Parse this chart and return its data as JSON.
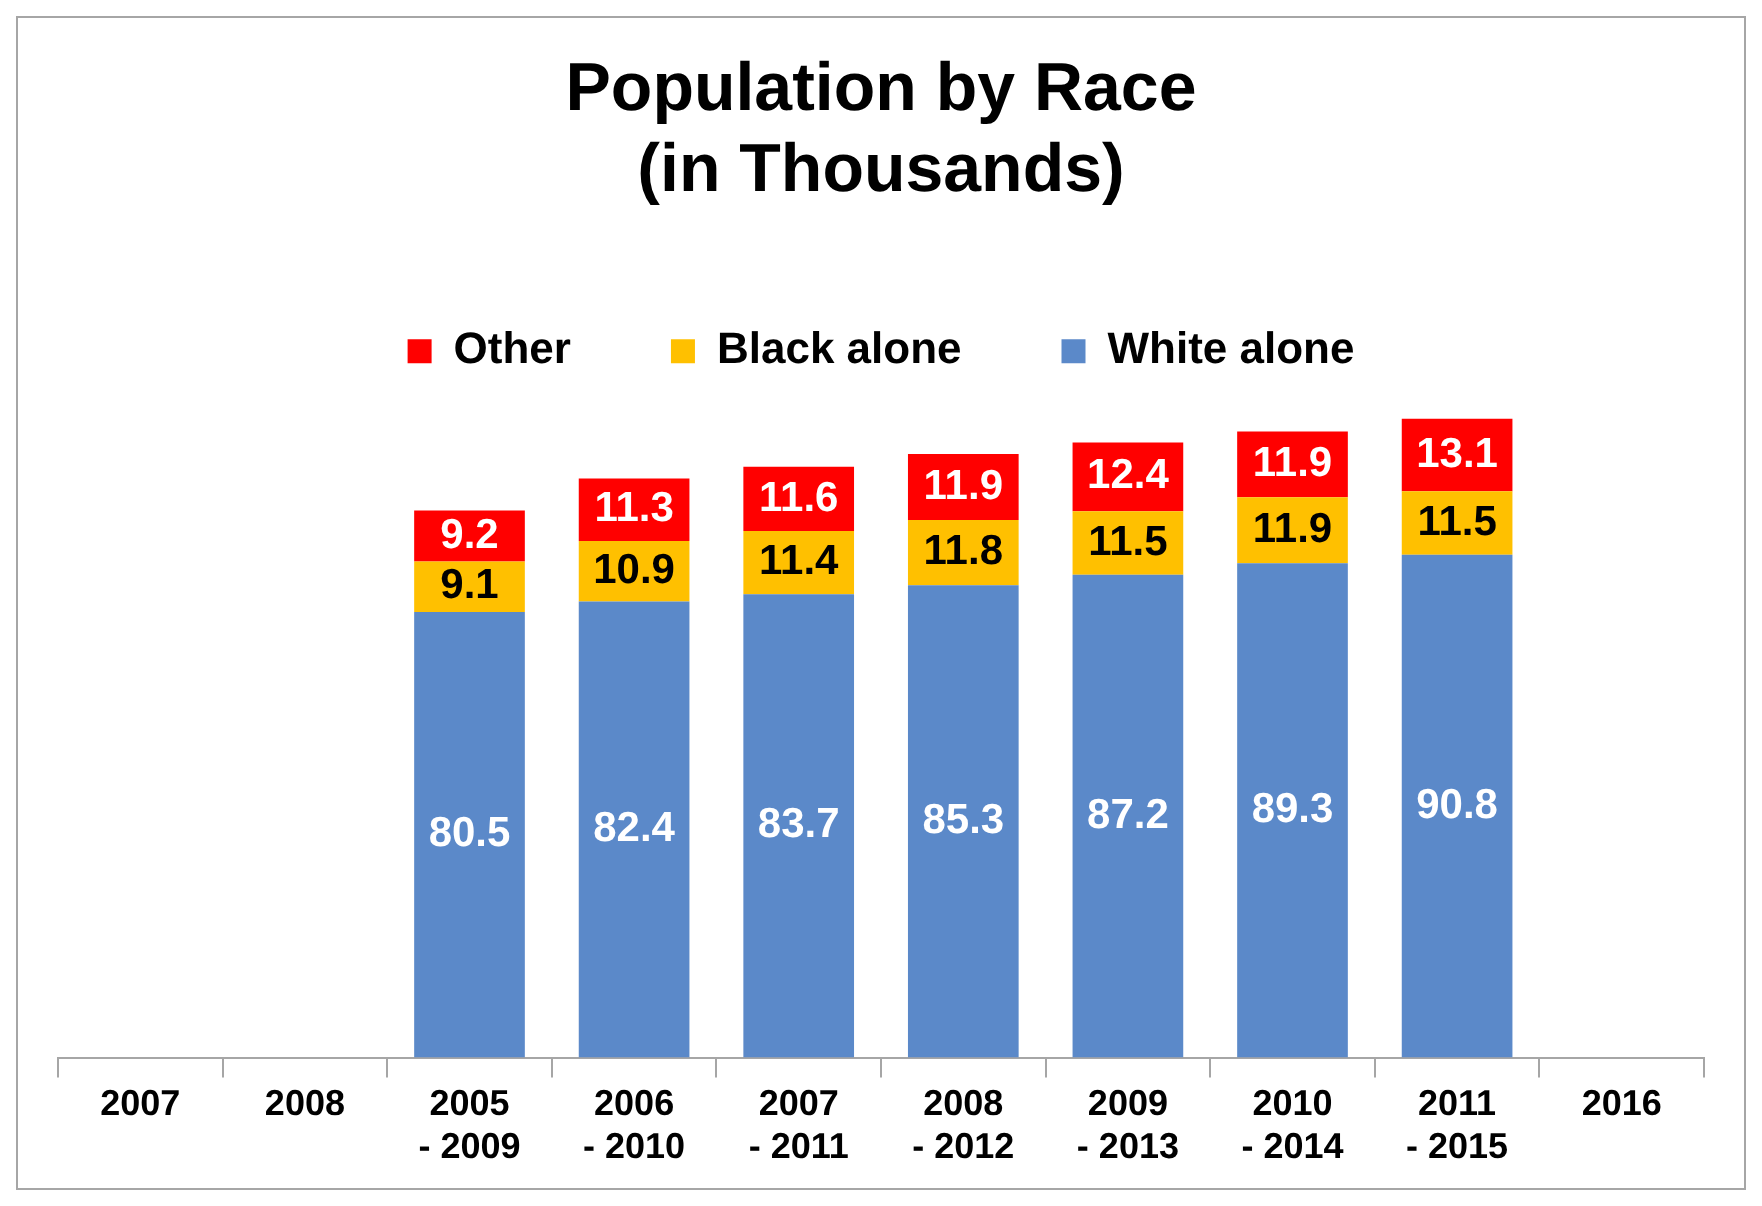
{
  "chart_data": {
    "type": "bar",
    "title": "Population by Race\n(in Thousands)",
    "categories": [
      "2007",
      "2008",
      "2005 - 2009",
      "2006 - 2010",
      "2007 - 2011",
      "2008 - 2012",
      "2009 - 2013",
      "2010 - 2014",
      "2011 - 2015",
      "2016"
    ],
    "stacked": true,
    "data_labels": true,
    "legend": "top",
    "grid": false,
    "tick_labels": "x",
    "series": [
      {
        "name": "White alone",
        "color": "#5b89c9",
        "values": [
          null,
          null,
          80.5,
          82.4,
          83.7,
          85.3,
          87.2,
          89.3,
          90.8,
          null
        ]
      },
      {
        "name": "Black alone",
        "color": "#ffc000",
        "values": [
          null,
          null,
          9.1,
          10.9,
          11.4,
          11.8,
          11.5,
          11.9,
          11.5,
          null
        ]
      },
      {
        "name": "Other",
        "color": "#ff0000",
        "values": [
          null,
          null,
          9.2,
          11.3,
          11.6,
          11.9,
          12.4,
          11.9,
          13.1,
          null
        ]
      }
    ]
  }
}
